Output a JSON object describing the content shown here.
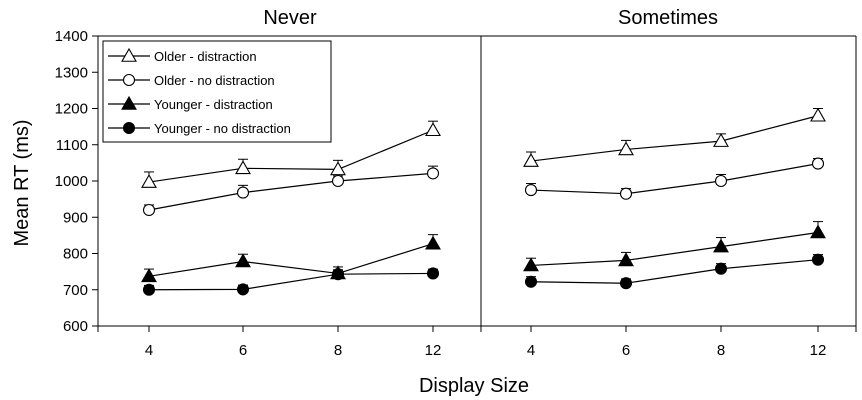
{
  "chart_data": {
    "type": "line",
    "ylabel": "Mean RT (ms)",
    "xlabel": "Display Size",
    "ylim": [
      600,
      1400
    ],
    "yticks": [
      600,
      700,
      800,
      900,
      1000,
      1100,
      1200,
      1300,
      1400
    ],
    "categories": [
      "4",
      "6",
      "8",
      "12"
    ],
    "legend_position": "top-left",
    "panels": [
      {
        "title": "Never",
        "series": [
          {
            "name": "Older - distraction",
            "marker": "triangle-open",
            "values": [
              997,
              1035,
              1032,
              1140
            ],
            "errors": [
              28,
              25,
              25,
              25
            ]
          },
          {
            "name": "Older - no distraction",
            "marker": "circle-open",
            "values": [
              920,
              968,
              1000,
              1021
            ],
            "errors": [
              14,
              20,
              14,
              20
            ]
          },
          {
            "name": "Younger - distraction",
            "marker": "triangle-filled",
            "values": [
              737,
              778,
              745,
              827
            ],
            "errors": [
              20,
              20,
              18,
              25
            ]
          },
          {
            "name": "Younger - no distraction",
            "marker": "circle-filled",
            "values": [
              700,
              701,
              743,
              745
            ],
            "errors": [
              12,
              12,
              12,
              12
            ]
          }
        ]
      },
      {
        "title": "Sometimes",
        "series": [
          {
            "name": "Older - distraction",
            "marker": "triangle-open",
            "values": [
              1055,
              1087,
              1110,
              1180
            ],
            "errors": [
              25,
              25,
              20,
              20
            ]
          },
          {
            "name": "Older - no distraction",
            "marker": "circle-open",
            "values": [
              975,
              965,
              1000,
              1048
            ],
            "errors": [
              18,
              14,
              18,
              14
            ]
          },
          {
            "name": "Younger - distraction",
            "marker": "triangle-filled",
            "values": [
              767,
              781,
              819,
              858
            ],
            "errors": [
              20,
              22,
              25,
              30
            ]
          },
          {
            "name": "Younger - no distraction",
            "marker": "circle-filled",
            "values": [
              722,
              718,
              758,
              783
            ],
            "errors": [
              14,
              12,
              14,
              14
            ]
          }
        ]
      }
    ]
  }
}
